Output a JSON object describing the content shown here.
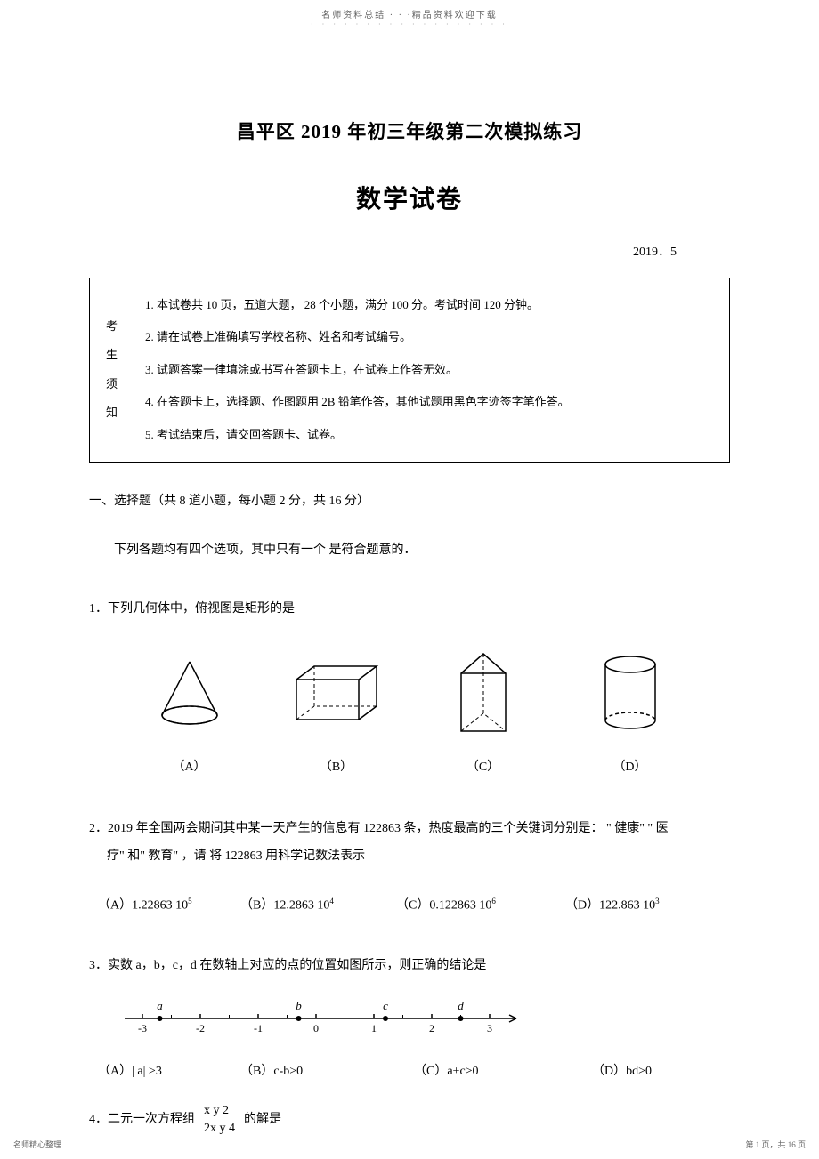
{
  "header": {
    "note": "名师资料总结 · · ·精品资料欢迎下载",
    "dots": "· · · · · · · · · · · · · · · · · ·"
  },
  "title": {
    "line1": "昌平区  2019 年初三年级第二次模拟练习",
    "line2": "数学试卷",
    "date": "2019．5"
  },
  "notice": {
    "leftCol": "考生须知",
    "items": [
      "1.  本试卷共  10 页，五道大题，  28 个小题，满分  100 分。考试时间  120 分钟。",
      "2.  请在试卷上准确填写学校名称、姓名和考试编号。",
      "3.  试题答案一律填涂或书写在答题卡上，在试卷上作答无效。",
      "4.  在答题卡上，选择题、作图题用     2B 铅笔作答，其他试题用黑色字迹签字笔作答。",
      "5.  考试结束后，请交回答题卡、试卷。"
    ]
  },
  "section1": {
    "header": "一、选择题（共   8 道小题，每小题   2 分，共  16 分）",
    "subNote": "下列各题均有四个选项，其中只有一个    是符合题意的．"
  },
  "q1": {
    "text": "1．下列几何体中，俯视图是矩形的是",
    "labels": [
      "（A）",
      "（B）",
      "（C）",
      "（D）"
    ]
  },
  "q2": {
    "text1": "2．2019 年全国两会期间其中某一天产生的信息有      122863 条，热度最高的三个关键词分别是：  \" 健康\" \" 医",
    "text2": "疗\"  和\" 教育\"  ，请   将 122863 用科学记数法表示",
    "options": [
      {
        "label": "（A）1.22863  10",
        "sup": "5"
      },
      {
        "label": "（B）12.2863  10",
        "sup": "4"
      },
      {
        "label": "（C）0.122863  10",
        "sup": "6"
      },
      {
        "label": "（D）122.863  10",
        "sup": "3"
      }
    ]
  },
  "q3": {
    "text": "3．实数  a，b，c，d 在数轴上对应的点的位置如图所示，则正确的结论是",
    "numberLine": {
      "ticks": [
        "-3",
        "-2",
        "-1",
        "0",
        "1",
        "2",
        "3"
      ],
      "points": [
        {
          "label": "a",
          "pos": -2.7
        },
        {
          "label": "b",
          "pos": -0.3
        },
        {
          "label": "c",
          "pos": 1.2
        },
        {
          "label": "d",
          "pos": 2.5
        }
      ]
    },
    "options": [
      "（A）| a| >3",
      "（B）c-b>0",
      "（C）a+c>0",
      "（D）bd>0"
    ]
  },
  "q4": {
    "text1": "4．二元一次方程组",
    "eq1": "x   y   2",
    "eq2": "2x   y   4",
    "text2": "的解是"
  },
  "footer": {
    "left": "名师精心整理",
    "right": "第 1 页，共 16 页"
  },
  "colors": {
    "text": "#000000",
    "muted": "#666666",
    "light": "#999999",
    "border": "#000000",
    "bg": "#ffffff"
  }
}
